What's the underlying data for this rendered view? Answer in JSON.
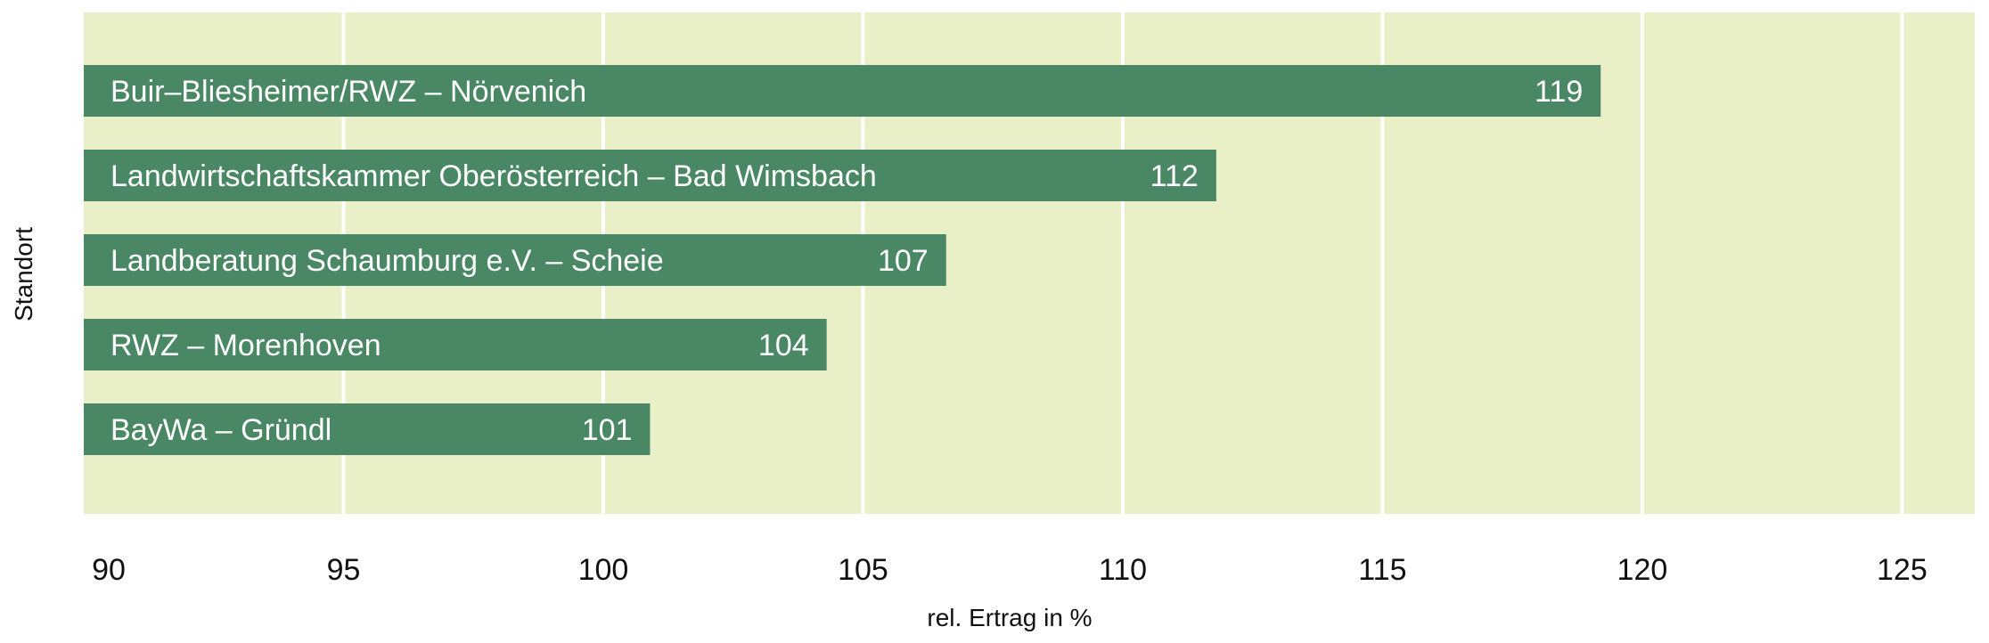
{
  "chart_data": {
    "type": "bar",
    "orientation": "horizontal",
    "categories": [
      "Buir–Bliesheimer/RWZ – Nörvenich",
      "Landwirtschaftskammer Oberösterreich – Bad Wimsbach",
      "Landberatung Schaumburg e.V. – Scheie",
      "RWZ – Morenhoven",
      "BayWa – Gründl"
    ],
    "values": [
      119.2,
      111.8,
      106.6,
      104.3,
      100.9
    ],
    "value_labels": [
      "119",
      "112",
      "107",
      "104",
      "101"
    ],
    "xlabel": "rel. Ertrag in %",
    "ylabel": "Standort",
    "xlim": [
      90,
      126.4
    ],
    "xticks": [
      90,
      95,
      100,
      105,
      110,
      115,
      120,
      125
    ],
    "grid": "vertical",
    "colors": {
      "plot_background": "#e9f0c8",
      "bar": "#4a8865",
      "gridline": "#ffffff",
      "bar_text": "#ffffff",
      "axis_text": "#111111"
    }
  }
}
